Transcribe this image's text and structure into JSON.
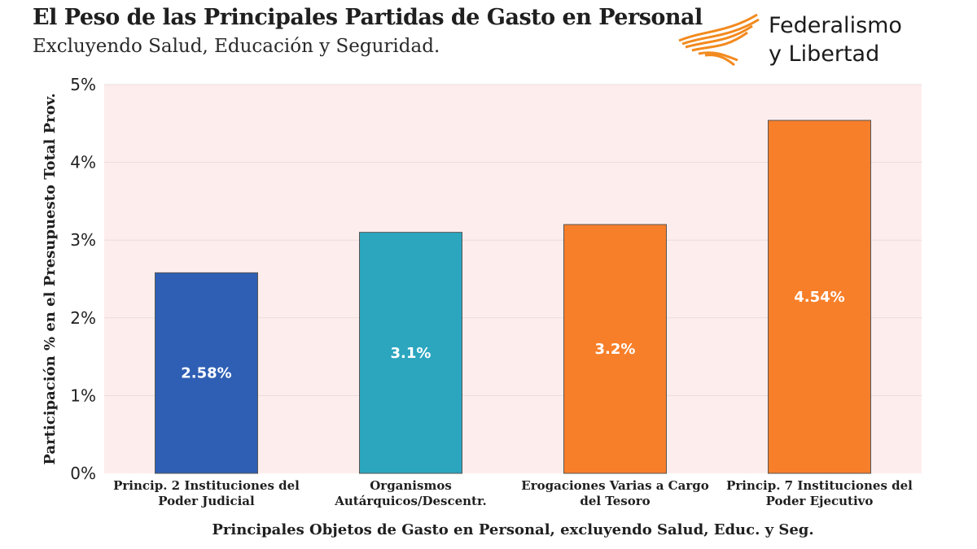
{
  "header": {
    "title": "El Peso de las Principales Partidas de Gasto en Personal",
    "subtitle": "Excluyendo Salud, Educación y Seguridad."
  },
  "logo": {
    "line1": "Federalismo",
    "line2": "y Libertad",
    "icon": "swoosh-logo-icon",
    "color": "#f28a1e"
  },
  "chart_data": {
    "type": "bar",
    "categories": [
      [
        "Princip. 2 Instituciones del",
        "Poder Judicial"
      ],
      [
        "Organismos",
        "Autárquicos/Descentr."
      ],
      [
        "Erogaciones Varias a Cargo",
        "del Tesoro"
      ],
      [
        "Princip. 7 Instituciones del",
        "Poder Ejecutivo"
      ]
    ],
    "values": [
      2.58,
      3.1,
      3.2,
      4.54
    ],
    "data_labels": [
      "2.58%",
      "3.1%",
      "3.2%",
      "4.54%"
    ],
    "colors": [
      "#2f5fb4",
      "#2ca6bf",
      "#f77f2a",
      "#f77f2a"
    ],
    "ylim": [
      0,
      5
    ],
    "yticks": [
      0,
      1,
      2,
      3,
      4,
      5
    ],
    "ytick_labels": [
      "0%",
      "1%",
      "2%",
      "3%",
      "4%",
      "5%"
    ],
    "xlabel": "Principales Objetos de Gasto en Personal, excluyendo Salud, Educ. y Seg.",
    "ylabel": "Participación % en el Presupuesto Total Prov.",
    "plot_background": "#fdeeed",
    "grid": true
  }
}
